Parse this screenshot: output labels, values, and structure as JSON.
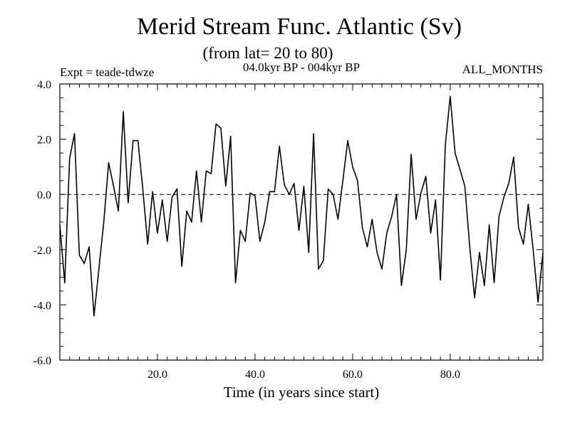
{
  "chart_data": {
    "type": "line",
    "title": "Merid Stream Func. Atlantic (Sv)",
    "subtitle": "(from lat= 20 to 80)",
    "expt_label": "Expt = teade-tdwze",
    "period_label": "04.0kyr BP - 004kyr BP",
    "months_label": "ALL_MONTHS",
    "xlabel": "Time (in years since start)",
    "ylabel": "",
    "xlim": [
      0,
      99
    ],
    "ylim": [
      -6.0,
      4.0
    ],
    "x_ticks": [
      20,
      40,
      60,
      80
    ],
    "x_tick_labels": [
      "20.0",
      "40.0",
      "60.0",
      "80.0"
    ],
    "y_ticks": [
      4.0,
      2.0,
      0.0,
      -2.0,
      -4.0,
      -6.0
    ],
    "y_tick_labels": [
      "4.0",
      "2.0",
      "0.0",
      "-2.0",
      "-4.0",
      "-6.0"
    ],
    "zero_line": "dashed",
    "grid": false,
    "series": [
      {
        "name": "Merid Stream Func",
        "x": [
          0,
          1,
          2,
          3,
          4,
          5,
          6,
          7,
          8,
          9,
          10,
          11,
          12,
          13,
          14,
          15,
          16,
          17,
          18,
          19,
          20,
          21,
          22,
          23,
          24,
          25,
          26,
          27,
          28,
          29,
          30,
          31,
          32,
          33,
          34,
          35,
          36,
          37,
          38,
          39,
          40,
          41,
          42,
          43,
          44,
          45,
          46,
          47,
          48,
          49,
          50,
          51,
          52,
          53,
          54,
          55,
          56,
          57,
          58,
          59,
          60,
          61,
          62,
          63,
          64,
          65,
          66,
          67,
          68,
          69,
          70,
          71,
          72,
          73,
          74,
          75,
          76,
          77,
          78,
          79,
          80,
          81,
          82,
          83,
          84,
          85,
          86,
          87,
          88,
          89,
          90,
          91,
          92,
          93,
          94,
          95,
          96,
          97,
          98,
          99
        ],
        "values": [
          -1.1,
          -3.2,
          1.3,
          2.2,
          -2.2,
          -2.5,
          -1.9,
          -4.4,
          -2.7,
          -1.0,
          1.15,
          0.3,
          -0.6,
          3.0,
          -0.3,
          1.95,
          1.95,
          0.2,
          -1.8,
          0.1,
          -1.4,
          -0.2,
          -1.7,
          -0.1,
          0.2,
          -2.6,
          -0.6,
          -1.0,
          0.85,
          -1.0,
          0.85,
          0.75,
          2.55,
          2.4,
          0.3,
          2.1,
          -3.2,
          -1.3,
          -1.7,
          0.05,
          -0.05,
          -1.7,
          -1.0,
          0.1,
          0.1,
          1.75,
          0.35,
          0.0,
          0.4,
          -1.3,
          0.3,
          -2.1,
          2.2,
          -2.7,
          -2.4,
          0.2,
          0.0,
          -0.9,
          0.5,
          1.95,
          1.0,
          0.5,
          -1.2,
          -1.9,
          -0.9,
          -2.1,
          -2.7,
          -1.4,
          -0.8,
          0.0,
          -3.3,
          -2.0,
          1.45,
          -0.9,
          0.05,
          0.65,
          -1.4,
          -0.2,
          -3.1,
          1.8,
          3.55,
          1.5,
          0.9,
          0.3,
          -1.9,
          -3.75,
          -2.1,
          -3.3,
          -1.1,
          -3.2,
          -0.8,
          -0.1,
          0.4,
          1.35,
          -1.2,
          -1.8,
          -0.35,
          -2.0,
          -3.9,
          -2.1
        ]
      }
    ]
  }
}
